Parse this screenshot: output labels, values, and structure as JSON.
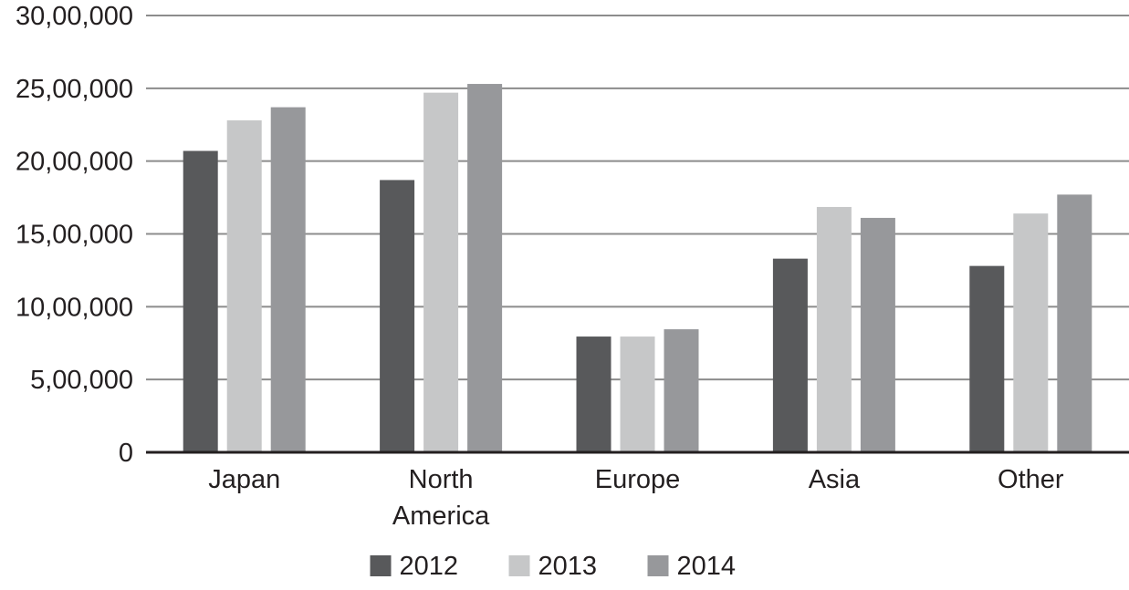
{
  "chart_data": {
    "type": "bar",
    "categories": [
      [
        "Japan"
      ],
      [
        "North",
        "America"
      ],
      [
        "Europe"
      ],
      [
        "Asia"
      ],
      [
        "Other"
      ]
    ],
    "series": [
      {
        "name": "2012",
        "color": "#58595b",
        "values": [
          2070000,
          1870000,
          795000,
          1330000,
          1280000
        ]
      },
      {
        "name": "2013",
        "color": "#c6c7c8",
        "values": [
          2280000,
          2470000,
          795000,
          1685000,
          1640000
        ]
      },
      {
        "name": "2014",
        "color": "#97989b",
        "values": [
          2370000,
          2530000,
          845000,
          1610000,
          1770000
        ]
      }
    ],
    "y_ticks": [
      {
        "value": 0,
        "label": "0"
      },
      {
        "value": 500000,
        "label": "5,00,000"
      },
      {
        "value": 1000000,
        "label": "10,00,000"
      },
      {
        "value": 1500000,
        "label": "15,00,000"
      },
      {
        "value": 2000000,
        "label": "20,00,000"
      },
      {
        "value": 2500000,
        "label": "25,00,000"
      },
      {
        "value": 3000000,
        "label": "30,00,000"
      }
    ],
    "ylim": [
      0,
      3000000
    ],
    "grid": true,
    "legend": "bottom",
    "gridline_color": "#8c8c8c",
    "axis_color": "#231f20"
  }
}
